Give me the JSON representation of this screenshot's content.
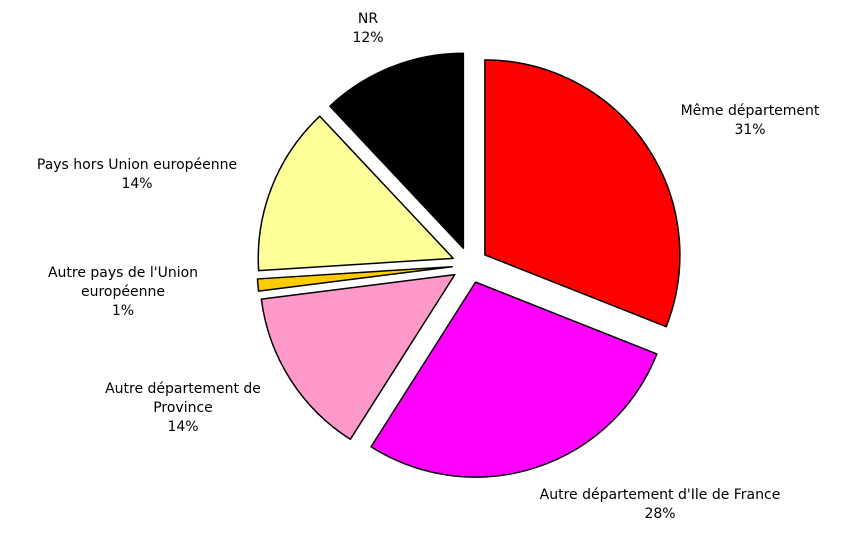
{
  "chart_data": {
    "type": "pie",
    "categories": [
      "Même département",
      "Autre département d'Ile de France",
      "Autre département de Province",
      "Autre pays de l'Union européenne",
      "Pays hors Union européenne",
      "NR"
    ],
    "values": [
      31,
      28,
      14,
      1,
      14,
      12
    ],
    "value_labels": [
      "31%",
      "28%",
      "14%",
      "1%",
      "14%",
      "12%"
    ],
    "colors": [
      "#ff0000",
      "#ff00ff",
      "#ff99cc",
      "#ffcc00",
      "#ffff99",
      "#000000"
    ]
  }
}
